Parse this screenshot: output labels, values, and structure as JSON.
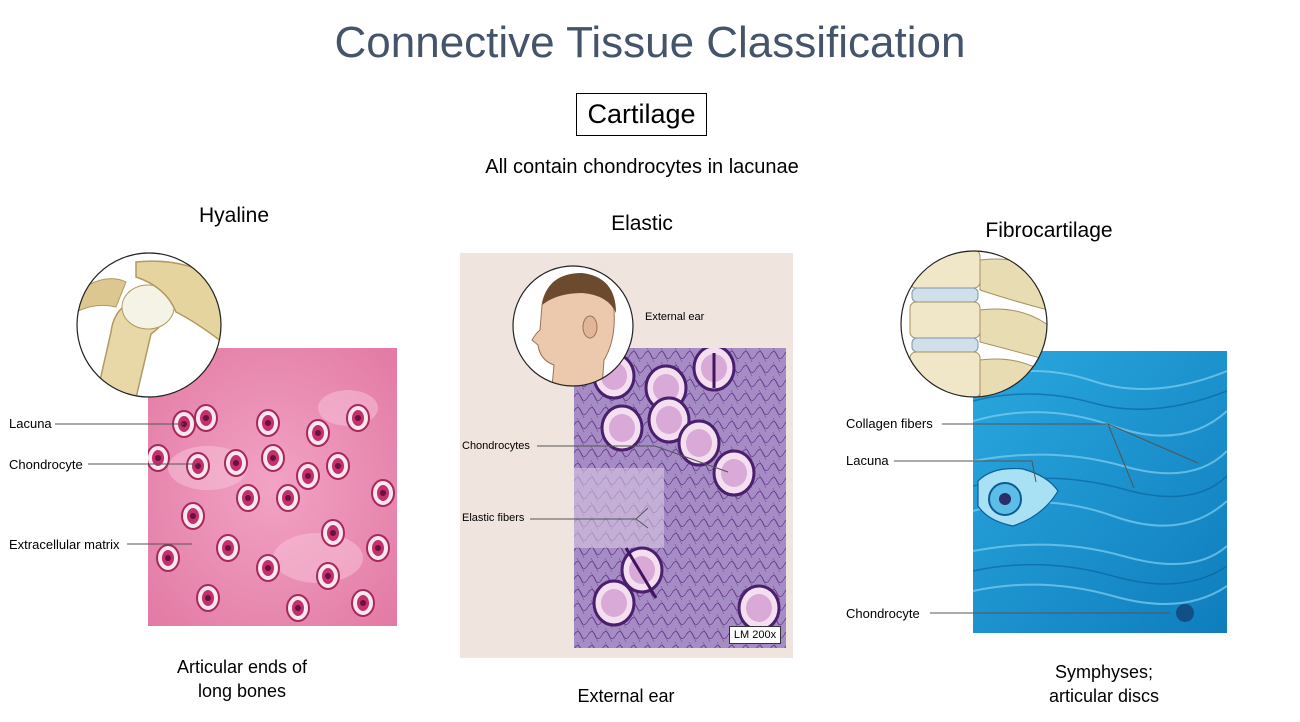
{
  "title": "Connective Tissue Classification",
  "category": "Cartilage",
  "subtitle": "All contain chondrocytes in lacunae",
  "columns": [
    {
      "heading": "Hyaline",
      "labels": [
        "Lacuna",
        "Chondrocyte",
        "Extracellular matrix"
      ],
      "caption_lines": [
        "Articular ends of",
        "long bones"
      ]
    },
    {
      "heading": "Elastic",
      "labels": [
        "External ear",
        "Chondrocytes",
        "Elastic fibers"
      ],
      "magnification": "LM 200x",
      "caption_lines": [
        "External ear"
      ]
    },
    {
      "heading": "Fibrocartilage",
      "labels": [
        "Collagen fibers",
        "Lacuna",
        "Chondrocyte"
      ],
      "caption_lines": [
        "Symphyses;",
        "articular discs"
      ]
    }
  ],
  "colors": {
    "title": "#44546a",
    "hyaline_matrix": "#e77fa8",
    "elastic_panel_bg": "#f0e4df",
    "elastic_stain": "#8a5bb0",
    "fibro_stain": "#1fa3d8"
  }
}
